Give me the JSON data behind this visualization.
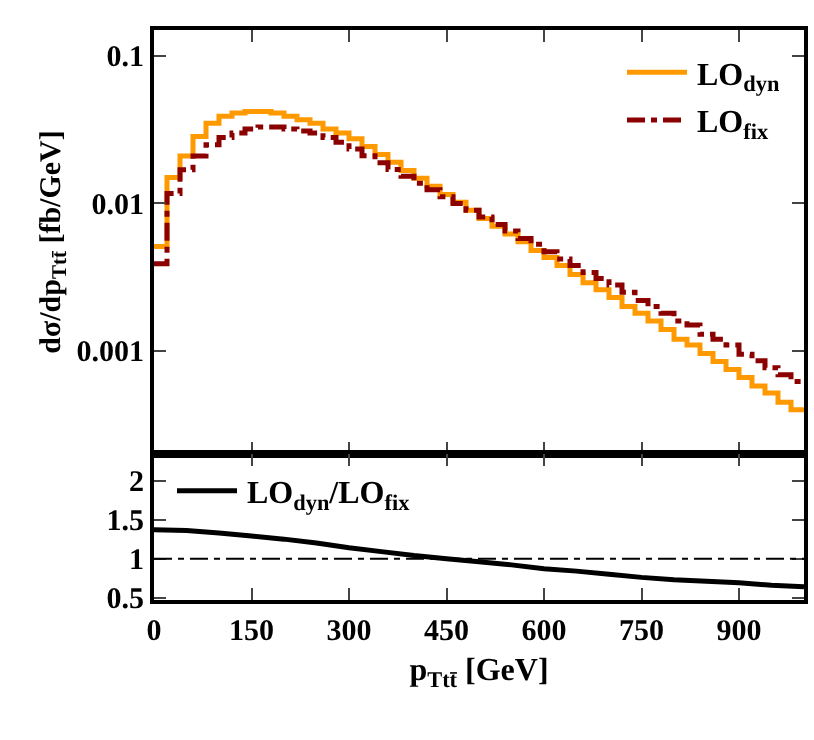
{
  "chart_data": [
    {
      "type": "histogram",
      "ylabel": "dσ/dp$_{T}$$_{tt̄}$ [fb/GeV]",
      "bins": [
        0,
        20,
        40,
        60,
        80,
        100,
        120,
        140,
        160,
        180,
        200,
        220,
        240,
        260,
        280,
        300,
        320,
        340,
        360,
        380,
        400,
        420,
        440,
        460,
        480,
        500,
        520,
        540,
        560,
        580,
        600,
        620,
        640,
        660,
        680,
        700,
        720,
        740,
        760,
        780,
        800,
        820,
        840,
        860,
        880,
        900,
        920,
        940,
        960,
        980,
        1000
      ],
      "series": [
        {
          "name": "LO$_{dyn}$",
          "color": "#ff9900",
          "line_style": "solid",
          "values": [
            0.0051,
            0.015,
            0.021,
            0.0285,
            0.035,
            0.039,
            0.041,
            0.042,
            0.042,
            0.041,
            0.039,
            0.037,
            0.035,
            0.032,
            0.03,
            0.0275,
            0.0243,
            0.0215,
            0.019,
            0.0167,
            0.0148,
            0.0131,
            0.0115,
            0.0102,
            0.009,
            0.0079,
            0.007,
            0.0062,
            0.0055,
            0.0048,
            0.0043,
            0.0038,
            0.0033,
            0.0029,
            0.0026,
            0.0023,
            0.002,
            0.0018,
            0.0016,
            0.0014,
            0.0012,
            0.0011,
            0.00096,
            0.00085,
            0.00075,
            0.00066,
            0.00058,
            0.00052,
            0.00045,
            0.0004
          ]
        },
        {
          "name": "LO$_{fix}$",
          "color": "#8b0000",
          "line_style": "dashdot",
          "values": [
            0.0039,
            0.0117,
            0.0169,
            0.021,
            0.025,
            0.028,
            0.03,
            0.032,
            0.033,
            0.033,
            0.032,
            0.031,
            0.03,
            0.028,
            0.026,
            0.0234,
            0.0211,
            0.0189,
            0.017,
            0.0153,
            0.0137,
            0.0124,
            0.0111,
            0.01,
            0.009,
            0.0081,
            0.0072,
            0.0065,
            0.0058,
            0.0053,
            0.0047,
            0.0042,
            0.0038,
            0.0034,
            0.0031,
            0.0028,
            0.0025,
            0.0022,
            0.002,
            0.0018,
            0.0016,
            0.0015,
            0.0013,
            0.0012,
            0.0011,
            0.00095,
            0.00086,
            0.00077,
            0.00069,
            0.00062
          ]
        }
      ],
      "xlim": [
        0,
        1000
      ],
      "xticks": [
        0,
        150,
        300,
        450,
        600,
        750,
        900
      ],
      "ylim": [
        0.0002,
        0.15
      ],
      "yticks": [
        0.001,
        0.01,
        0.1
      ],
      "log": true,
      "tick_labels": "y",
      "legend": "top right",
      "marker": "none",
      "grid": false
    },
    {
      "type": "line",
      "xlabel": "p$_{T}$$_{tt̄}$ [GeV]",
      "x": [
        0,
        50,
        100,
        150,
        200,
        250,
        300,
        350,
        400,
        450,
        500,
        550,
        600,
        650,
        700,
        750,
        800,
        850,
        900,
        950,
        1000
      ],
      "series": [
        {
          "name": "LO$_{dyn}$/LO$_{fix}$",
          "color": "#000000",
          "line_style": "solid",
          "values": [
            1.37,
            1.36,
            1.33,
            1.29,
            1.25,
            1.2,
            1.14,
            1.09,
            1.04,
            1.0,
            0.96,
            0.92,
            0.87,
            0.84,
            0.8,
            0.76,
            0.73,
            0.71,
            0.69,
            0.66,
            0.64
          ]
        }
      ],
      "xlim": [
        0,
        1000
      ],
      "xticks": [
        0,
        150,
        300,
        450,
        600,
        750,
        900
      ],
      "ylim": [
        0.47,
        2.34
      ],
      "yticks": [
        0.5,
        1,
        1.5,
        2
      ],
      "ref_lines": [
        {
          "axis": "y",
          "value": 1,
          "color": "#000000",
          "line_style": "dashdot"
        }
      ],
      "legend": "top left",
      "marker": "none",
      "grid": false
    }
  ]
}
